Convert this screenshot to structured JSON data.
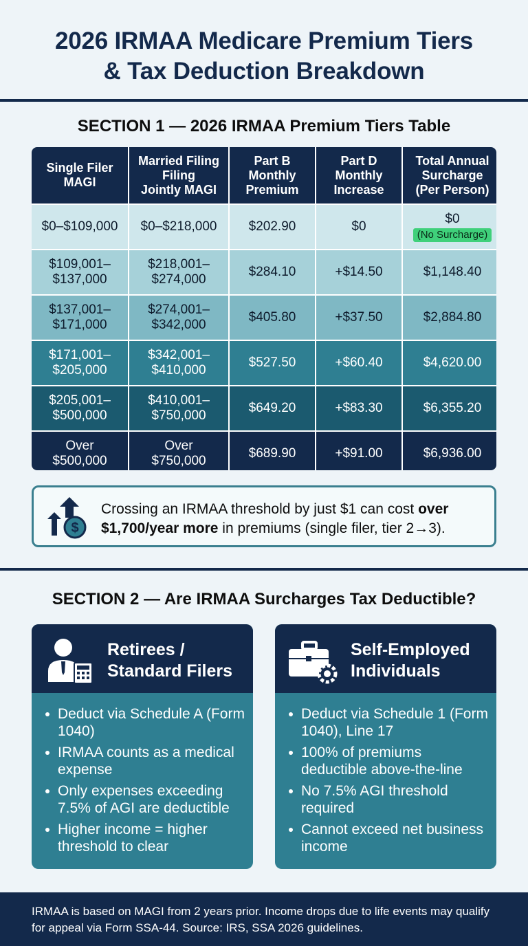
{
  "title": {
    "line1": "2026 IRMAA Medicare Premium Tiers",
    "line2": "& Tax Deduction Breakdown"
  },
  "section1": {
    "heading": "SECTION 1 — 2026 IRMAA Premium Tiers Table",
    "columns": [
      [
        "Single Filer",
        "MAGI"
      ],
      [
        "Married Filing",
        "Filing",
        "Jointly MAGI"
      ],
      [
        "Part B",
        "Monthly",
        "Premium"
      ],
      [
        "Part D",
        "Monthly",
        "Increase"
      ],
      [
        "Total Annual",
        "Surcharge",
        "(Per Person)"
      ]
    ],
    "rows": [
      {
        "single": [
          "$0–$109,000"
        ],
        "joint": [
          "$0–$218,000"
        ],
        "part_b": "$202.90",
        "part_d": "$0",
        "total": "$0",
        "badge": "(No Surcharge)"
      },
      {
        "single": [
          "$109,001–",
          "$137,000"
        ],
        "joint": [
          "$218,001–",
          "$274,000"
        ],
        "part_b": "$284.10",
        "part_d": "+$14.50",
        "total": "$1,148.40"
      },
      {
        "single": [
          "$137,001–",
          "$171,000"
        ],
        "joint": [
          "$274,001–",
          "$342,000"
        ],
        "part_b": "$405.80",
        "part_d": "+$37.50",
        "total": "$2,884.80"
      },
      {
        "single": [
          "$171,001–",
          "$205,000"
        ],
        "joint": [
          "$342,001–",
          "$410,000"
        ],
        "part_b": "$527.50",
        "part_d": "+$60.40",
        "total": "$4,620.00"
      },
      {
        "single": [
          "$205,001–",
          "$500,000"
        ],
        "joint": [
          "$410,001–",
          "$750,000"
        ],
        "part_b": "$649.20",
        "part_d": "+$83.30",
        "total": "$6,355.20"
      },
      {
        "single": [
          "Over",
          "$500,000"
        ],
        "joint": [
          "Over",
          "$750,000"
        ],
        "part_b": "$689.90",
        "part_d": "+$91.00",
        "total": "$6,936.00"
      }
    ],
    "callout": {
      "icon": "rising-cost-dollar-icon",
      "text_before": "Crossing an IRMAA threshold by just $1 can cost ",
      "text_bold": "over $1,700/year more",
      "text_after": " in premiums (single filer, tier 2→3)."
    }
  },
  "section2": {
    "heading": "SECTION 2 — Are IRMAA Surcharges Tax Deductible?",
    "cards": [
      {
        "icon": "person-calculator-icon",
        "title_line1": "Retirees /",
        "title_line2": "Standard Filers",
        "items": [
          "Deduct via Schedule A (Form 1040)",
          "IRMAA counts as a medical expense",
          "Only expenses exceeding 7.5% of AGI are deductible",
          "Higher income = higher threshold to clear"
        ]
      },
      {
        "icon": "briefcase-gear-icon",
        "title_line1": "Self-Employed",
        "title_line2": "Individuals",
        "items": [
          "Deduct via Schedule 1 (Form 1040), Line 17",
          "100% of premiums deductible above-the-line",
          "No 7.5% AGI threshold required",
          "Cannot exceed net business income"
        ]
      }
    ]
  },
  "footer": {
    "text": "IRMAA is based on MAGI from 2 years prior. Income drops due to life events may qualify for appeal via Form SSA-44. Source: IRS, SSA 2026 guidelines."
  },
  "colors": {
    "navy": "#13294b",
    "teal": "#2f7f92",
    "surcharge_badge": "#3fd07a"
  }
}
